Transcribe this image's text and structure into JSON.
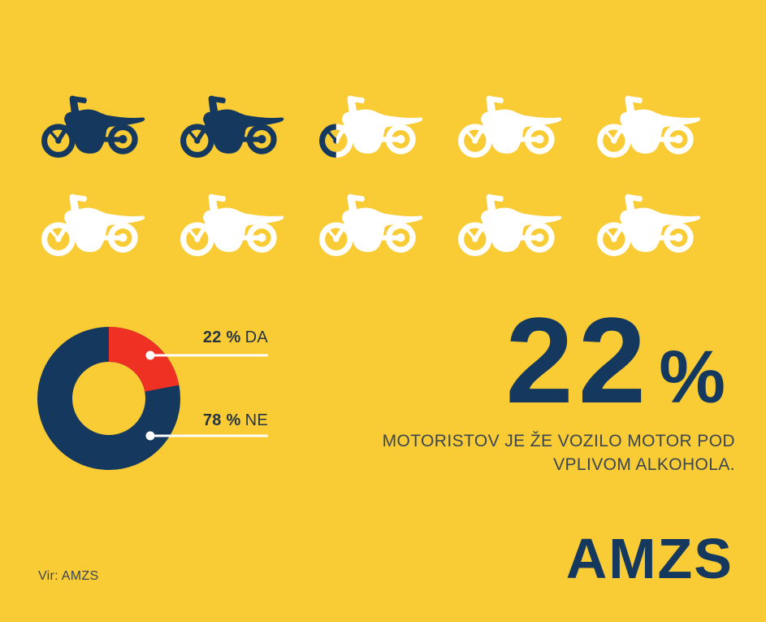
{
  "colors": {
    "background": "#F9CB34",
    "navy": "#15395E",
    "red": "#EE3123",
    "white": "#FFFFFF",
    "callout_line": "#FFFFFF",
    "text_dark": "#3B4650",
    "label_dark": "#273540"
  },
  "chart_data": [
    {
      "type": "pictograph",
      "icon": "motorcycle",
      "total_icons": 10,
      "filled_icons": 2.2,
      "rows": 2,
      "icons_per_row": 5,
      "filled_color": "#15395E",
      "empty_color": "#FFFFFF"
    },
    {
      "type": "pie",
      "subtype": "donut",
      "labels": [
        "DA",
        "NE"
      ],
      "values": [
        22,
        78
      ],
      "colors": [
        "#EE3123",
        "#15395E"
      ],
      "start_angle_deg": 0,
      "direction": "clockwise",
      "outer_radius_px": 88,
      "inner_radius_px": 45,
      "callout_labels": [
        "22 % DA",
        "78 % NE"
      ],
      "legend_position": "right-callouts"
    }
  ],
  "donut_labels": [
    {
      "value": "22 %",
      "answer": "DA"
    },
    {
      "value": "78 %",
      "answer": "NE"
    }
  ],
  "headline": {
    "value": "22",
    "unit": "%",
    "subtitle_line1": "MOTORISTOV JE ŽE VOZILO MOTOR POD",
    "subtitle_line2": "VPLIVOM ALKOHOLA."
  },
  "source": "Vir: AMZS",
  "logo": "AMZS"
}
